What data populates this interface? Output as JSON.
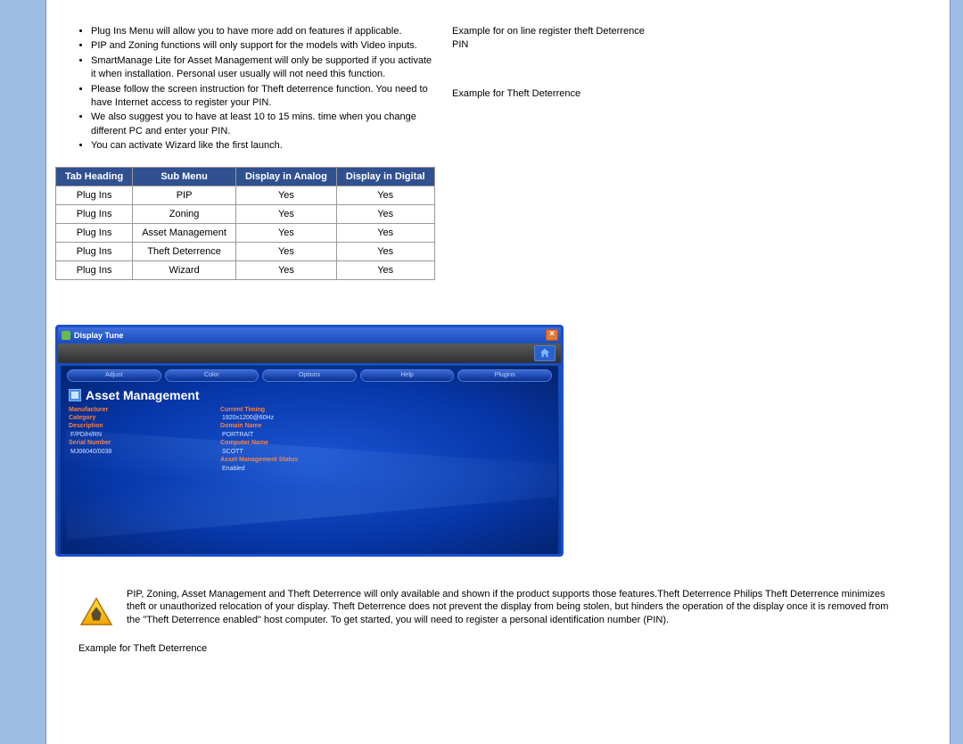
{
  "right": {
    "line1": "Example for on line register theft Deterrence PIN",
    "line2": "Example for Theft Deterrence"
  },
  "bullets": [
    "Plug Ins Menu will allow you to have more add on features if applicable.",
    "PIP and Zoning functions will only support for the models with Video inputs.",
    "SmartManage Lite for Asset Management will only be supported if you activate it when installation. Personal user usually will not need this function.",
    "Please follow the screen instruction for Theft deterrence function. You need to have Internet access to register your PIN.",
    "We also suggest you to have at least 10 to 15 mins. time when you change different PC and enter your PIN.",
    "You can activate Wizard like the first launch."
  ],
  "table": {
    "columns": [
      "Tab Heading",
      "Sub Menu",
      "Display in Analog",
      "Display in Digital"
    ],
    "rows": [
      [
        "Plug Ins",
        "PIP",
        "Yes",
        "Yes"
      ],
      [
        "Plug Ins",
        "Zoning",
        "Yes",
        "Yes"
      ],
      [
        "Plug Ins",
        "Asset Management",
        "Yes",
        "Yes"
      ],
      [
        "Plug Ins",
        "Theft Deterrence",
        "Yes",
        "Yes"
      ],
      [
        "Plug Ins",
        "Wizard",
        "Yes",
        "Yes"
      ]
    ]
  },
  "window": {
    "title": "Display Tune",
    "tabs": [
      "Adjust",
      "Color",
      "Options",
      "Help",
      "Plugins"
    ],
    "panel_title": "Asset Management",
    "info_left": {
      "manufacturer_lbl": "Manufacturer",
      "manufacturer_val": "",
      "category_lbl": "Category",
      "category_val": "",
      "description_lbl": "Description",
      "description_val": "",
      "model_lbl": "F/PD/H/RN",
      "model_val": "",
      "serial_lbl": "Serial Number",
      "serial_val": "MJ06040/0038"
    },
    "info_right": {
      "timing_lbl": "Current Timing",
      "timing_val": "1920x1200@60Hz",
      "domain_lbl": "Domain Name",
      "domain_val": "PORTRAIT",
      "computer_lbl": "Computer Name",
      "computer_val": "SCOTT",
      "status_lbl": "Asset Management Status",
      "status_val": "Enabled"
    }
  },
  "notice": "PIP, Zoning, Asset Management and Theft Deterrence will only available and shown if the product supports those features.Theft Deterrence Philips Theft Deterrence minimizes theft or unauthorized relocation of your display. Theft Deterrence does not prevent the display from being stolen, but hinders the operation of the display once it is removed from the \"Theft Deterrence enabled\" host computer. To get started, you will need to register a personal identification number (PIN).",
  "example_bottom": "Example for Theft Deterrence"
}
